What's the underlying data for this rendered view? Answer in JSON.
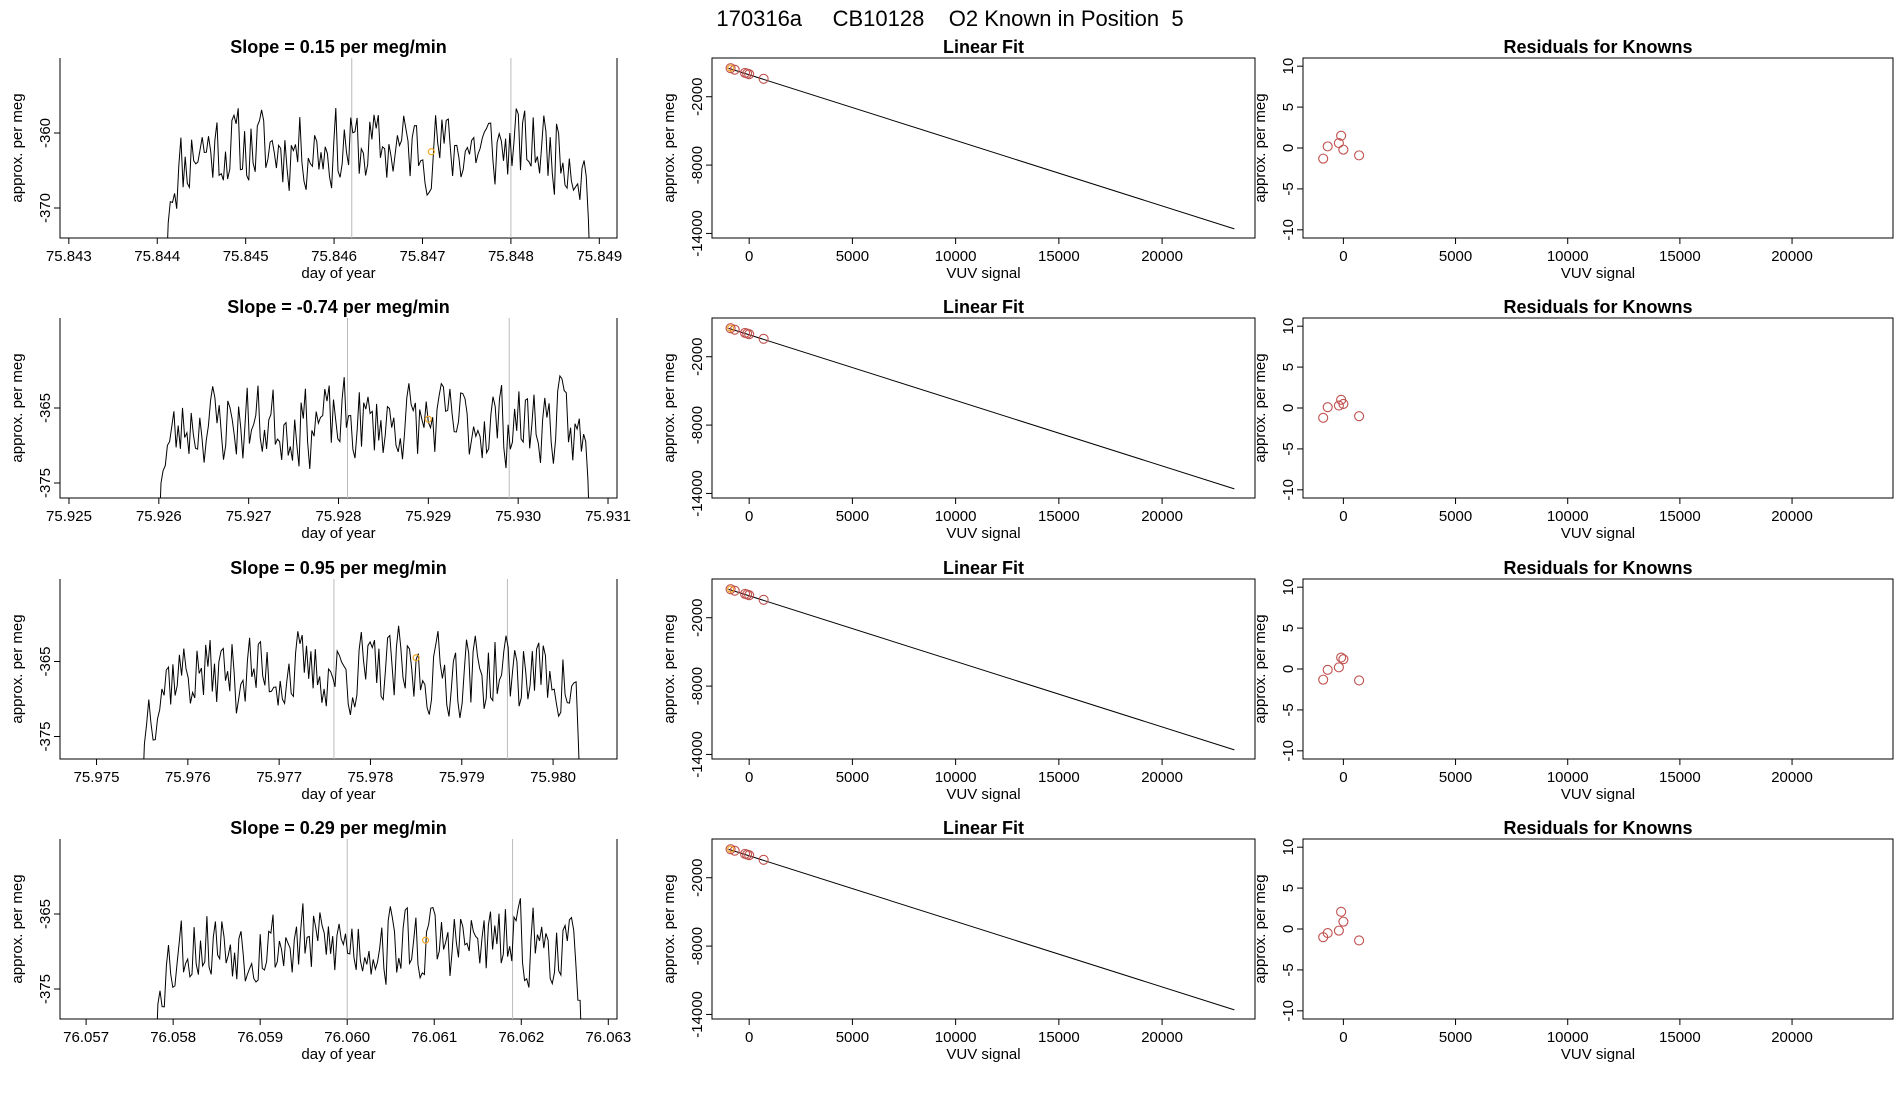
{
  "figure": {
    "main_title": "170316a     CB10128    O2 Known in Position  5"
  },
  "colors": {
    "trace": "#000000",
    "marker": "#f5a623",
    "residual": "#c0504d",
    "fitpoint": "#c0504d",
    "frame": "#000000",
    "vline": "#bbbbbb"
  },
  "chart_data": [
    {
      "type": "line",
      "panel": "time",
      "title": "Slope =  0.15  per meg/min",
      "xlabel": "day of year",
      "ylabel": "approx. per meg",
      "xlim": [
        75.8429,
        75.8492
      ],
      "ylim": [
        -374.0,
        -350.0
      ],
      "xticks": [
        75.843,
        75.844,
        75.845,
        75.846,
        75.847,
        75.848,
        75.849
      ],
      "xtick_labels": [
        "75.843",
        "75.844",
        "75.845",
        "75.846",
        "75.847",
        "75.848",
        "75.849"
      ],
      "yticks": [
        -360,
        -370
      ],
      "ytick_labels": [
        "-360",
        "-370"
      ],
      "vlines": [
        75.8462,
        75.848
      ],
      "start": 75.8441,
      "end": 75.8489,
      "center": -362,
      "marker": [
        75.8471,
        -362.5
      ],
      "seed": 11
    },
    {
      "type": "line",
      "panel": "fit",
      "title": "Linear Fit",
      "xlabel": "VUV signal",
      "ylabel": "approx. per meg",
      "xlim": [
        -1800,
        24500
      ],
      "ylim": [
        -14400,
        1400
      ],
      "xticks": [
        0,
        5000,
        10000,
        15000,
        20000
      ],
      "xtick_labels": [
        "0",
        "5000",
        "10000",
        "15000",
        "20000"
      ],
      "yticks": [
        -2000,
        -8000,
        -14000
      ],
      "ytick_labels": [
        "-2000",
        "-8000",
        "-14000"
      ],
      "line": {
        "x": [
          -1000,
          23500
        ],
        "y": [
          500,
          -13600
        ]
      },
      "points": {
        "x": [
          -900,
          -700,
          -200,
          -100,
          0,
          700
        ],
        "y": [
          505,
          375,
          95,
          30,
          -25,
          -425
        ]
      }
    },
    {
      "type": "scatter",
      "panel": "resid",
      "title": "Residuals for Knowns",
      "xlabel": "VUV signal",
      "ylabel": "approx. per meg",
      "xlim": [
        -1800,
        24500
      ],
      "ylim": [
        -11,
        11
      ],
      "xticks": [
        0,
        5000,
        10000,
        15000,
        20000
      ],
      "xtick_labels": [
        "0",
        "5000",
        "10000",
        "15000",
        "20000"
      ],
      "yticks": [
        10,
        5,
        0,
        -5,
        -10
      ],
      "ytick_labels": [
        "10",
        "5",
        "0",
        "-5",
        "-10"
      ],
      "points": {
        "x": [
          -900,
          -700,
          -200,
          -100,
          0,
          700
        ],
        "y": [
          -1.3,
          0.2,
          0.6,
          1.5,
          -0.2,
          -0.9
        ]
      }
    },
    {
      "type": "line",
      "panel": "time",
      "title": "Slope =  -0.74  per meg/min",
      "xlabel": "day of year",
      "ylabel": "approx. per meg",
      "xlim": [
        75.9249,
        75.9311
      ],
      "ylim": [
        -377.0,
        -353.0
      ],
      "xticks": [
        75.925,
        75.926,
        75.927,
        75.928,
        75.929,
        75.93,
        75.931
      ],
      "xtick_labels": [
        "75.925",
        "75.926",
        "75.927",
        "75.928",
        "75.929",
        "75.930",
        "75.931"
      ],
      "yticks": [
        -365,
        -375
      ],
      "ytick_labels": [
        "-365",
        "-375"
      ],
      "vlines": [
        75.9281,
        75.9299
      ],
      "start": 75.926,
      "end": 75.9308,
      "center": -367,
      "marker": [
        75.929,
        -366.5
      ],
      "seed": 23
    },
    {
      "type": "line",
      "panel": "fit",
      "title": "Linear Fit",
      "xlabel": "VUV signal",
      "ylabel": "approx. per meg",
      "xlim": [
        -1800,
        24500
      ],
      "ylim": [
        -14400,
        1400
      ],
      "xticks": [
        0,
        5000,
        10000,
        15000,
        20000
      ],
      "xtick_labels": [
        "0",
        "5000",
        "10000",
        "15000",
        "20000"
      ],
      "yticks": [
        -2000,
        -8000,
        -14000
      ],
      "ytick_labels": [
        "-2000",
        "-8000",
        "-14000"
      ],
      "line": {
        "x": [
          -1000,
          23500
        ],
        "y": [
          500,
          -13600
        ]
      },
      "points": {
        "x": [
          -900,
          -700,
          -200,
          -100,
          0,
          700
        ],
        "y": [
          505,
          375,
          95,
          30,
          -25,
          -425
        ]
      }
    },
    {
      "type": "scatter",
      "panel": "resid",
      "title": "Residuals for Knowns",
      "xlabel": "VUV signal",
      "ylabel": "approx. per meg",
      "xlim": [
        -1800,
        24500
      ],
      "ylim": [
        -11,
        11
      ],
      "xticks": [
        0,
        5000,
        10000,
        15000,
        20000
      ],
      "xtick_labels": [
        "0",
        "5000",
        "10000",
        "15000",
        "20000"
      ],
      "yticks": [
        10,
        5,
        0,
        -5,
        -10
      ],
      "ytick_labels": [
        "10",
        "5",
        "0",
        "-5",
        "-10"
      ],
      "points": {
        "x": [
          -900,
          -700,
          -200,
          -100,
          0,
          700
        ],
        "y": [
          -1.2,
          0.1,
          0.3,
          1.0,
          0.5,
          -1.0
        ]
      }
    },
    {
      "type": "line",
      "panel": "time",
      "title": "Slope =  0.95  per meg/min",
      "xlabel": "day of year",
      "ylabel": "approx. per meg",
      "xlim": [
        75.9746,
        75.9807
      ],
      "ylim": [
        -378.0,
        -354.0
      ],
      "xticks": [
        75.975,
        75.976,
        75.977,
        75.978,
        75.979,
        75.98
      ],
      "xtick_labels": [
        "75.975",
        "75.976",
        "75.977",
        "75.978",
        "75.979",
        "75.980"
      ],
      "yticks": [
        -365,
        -375
      ],
      "ytick_labels": [
        "-365",
        "-375"
      ],
      "vlines": [
        75.9776,
        75.9795
      ],
      "start": 75.9755,
      "end": 75.9803,
      "center": -366.5,
      "marker": [
        75.9785,
        -364.5
      ],
      "seed": 37
    },
    {
      "type": "line",
      "panel": "fit",
      "title": "Linear Fit",
      "xlabel": "VUV signal",
      "ylabel": "approx. per meg",
      "xlim": [
        -1800,
        24500
      ],
      "ylim": [
        -14400,
        1400
      ],
      "xticks": [
        0,
        5000,
        10000,
        15000,
        20000
      ],
      "xtick_labels": [
        "0",
        "5000",
        "10000",
        "15000",
        "20000"
      ],
      "yticks": [
        -2000,
        -8000,
        -14000
      ],
      "ytick_labels": [
        "-2000",
        "-8000",
        "-14000"
      ],
      "line": {
        "x": [
          -1000,
          23500
        ],
        "y": [
          500,
          -13600
        ]
      },
      "points": {
        "x": [
          -900,
          -700,
          -200,
          -100,
          0,
          700
        ],
        "y": [
          505,
          375,
          95,
          30,
          -25,
          -425
        ]
      }
    },
    {
      "type": "scatter",
      "panel": "resid",
      "title": "Residuals for Knowns",
      "xlabel": "VUV signal",
      "ylabel": "approx. per meg",
      "xlim": [
        -1800,
        24500
      ],
      "ylim": [
        -11,
        11
      ],
      "xticks": [
        0,
        5000,
        10000,
        15000,
        20000
      ],
      "xtick_labels": [
        "0",
        "5000",
        "10000",
        "15000",
        "20000"
      ],
      "yticks": [
        10,
        5,
        0,
        -5,
        -10
      ],
      "ytick_labels": [
        "10",
        "5",
        "0",
        "-5",
        "-10"
      ],
      "points": {
        "x": [
          -900,
          -700,
          -200,
          -100,
          0,
          700
        ],
        "y": [
          -1.3,
          -0.1,
          0.2,
          1.4,
          1.2,
          -1.4
        ]
      }
    },
    {
      "type": "line",
      "panel": "time",
      "title": "Slope =  0.29  per meg/min",
      "xlabel": "day of year",
      "ylabel": "approx. per meg",
      "xlim": [
        76.0567,
        76.0631
      ],
      "ylim": [
        -379.0,
        -355.0
      ],
      "xticks": [
        76.057,
        76.058,
        76.059,
        76.06,
        76.061,
        76.062,
        76.063
      ],
      "xtick_labels": [
        "76.057",
        "76.058",
        "76.059",
        "76.060",
        "76.061",
        "76.062",
        "76.063"
      ],
      "yticks": [
        -365,
        -375
      ],
      "ytick_labels": [
        "-365",
        "-375"
      ],
      "vlines": [
        76.06,
        76.0619
      ],
      "start": 76.0578,
      "end": 76.0627,
      "center": -369,
      "marker": [
        76.0609,
        -368.5
      ],
      "seed": 53
    },
    {
      "type": "line",
      "panel": "fit",
      "title": "Linear Fit",
      "xlabel": "VUV signal",
      "ylabel": "approx. per meg",
      "xlim": [
        -1800,
        24500
      ],
      "ylim": [
        -14400,
        1400
      ],
      "xticks": [
        0,
        5000,
        10000,
        15000,
        20000
      ],
      "xtick_labels": [
        "0",
        "5000",
        "10000",
        "15000",
        "20000"
      ],
      "yticks": [
        -2000,
        -8000,
        -14000
      ],
      "ytick_labels": [
        "-2000",
        "-8000",
        "-14000"
      ],
      "line": {
        "x": [
          -1000,
          23500
        ],
        "y": [
          500,
          -13600
        ]
      },
      "points": {
        "x": [
          -900,
          -700,
          -200,
          -100,
          0,
          700
        ],
        "y": [
          505,
          375,
          95,
          30,
          -25,
          -425
        ]
      }
    },
    {
      "type": "scatter",
      "panel": "resid",
      "title": "Residuals for Knowns",
      "xlabel": "VUV signal",
      "ylabel": "approx. per meg",
      "xlim": [
        -1800,
        24500
      ],
      "ylim": [
        -11,
        11
      ],
      "xticks": [
        0,
        5000,
        10000,
        15000,
        20000
      ],
      "xtick_labels": [
        "0",
        "5000",
        "10000",
        "15000",
        "20000"
      ],
      "yticks": [
        10,
        5,
        0,
        -5,
        -10
      ],
      "ytick_labels": [
        "10",
        "5",
        "0",
        "-5",
        "-10"
      ],
      "points": {
        "x": [
          -900,
          -700,
          -200,
          -100,
          0,
          700
        ],
        "y": [
          -1.0,
          -0.5,
          -0.2,
          2.1,
          0.9,
          -1.4
        ]
      }
    }
  ]
}
